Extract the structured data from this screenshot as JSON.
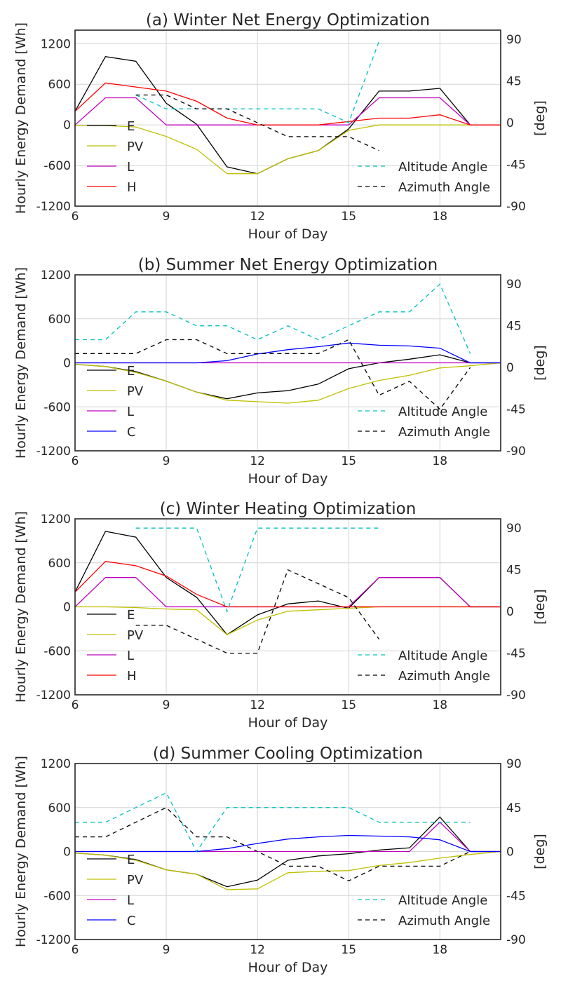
{
  "chart_data": [
    {
      "type": "line",
      "title": "(a) Winter Net Energy Optimization",
      "xlabel": "Hour of Day",
      "ylabel": "Hourly Energy Demand [Wh]",
      "y2label": "[deg]",
      "xlim": [
        6,
        20
      ],
      "ylim": [
        -1200,
        1400
      ],
      "y2lim": [
        -90,
        100
      ],
      "xticks": [
        6,
        9,
        12,
        15,
        18
      ],
      "yticks": [
        -1200,
        -600,
        0,
        600,
        1200
      ],
      "y2ticks": [
        -90,
        -45,
        0,
        45,
        90
      ],
      "grid": true,
      "legend_left": "left",
      "legend_right": "lower-right",
      "series": [
        {
          "name": "E",
          "color": "#000000",
          "axis": "left",
          "dash": false,
          "x": [
            6,
            7,
            8,
            9,
            10,
            11,
            12,
            13,
            14,
            15,
            16,
            17,
            18,
            19,
            20
          ],
          "values": [
            200,
            1010,
            940,
            320,
            10,
            -620,
            -720,
            -500,
            -380,
            -60,
            500,
            500,
            540,
            0,
            0
          ]
        },
        {
          "name": "PV",
          "color": "#bfbf00",
          "axis": "left",
          "dash": false,
          "x": [
            6,
            7,
            8,
            9,
            10,
            11,
            12,
            13,
            14,
            15,
            16,
            17,
            18,
            19,
            20
          ],
          "values": [
            -10,
            -10,
            -30,
            -170,
            -360,
            -720,
            -720,
            -500,
            -380,
            -80,
            0,
            0,
            0,
            0,
            0
          ]
        },
        {
          "name": "L",
          "color": "#bf00bf",
          "axis": "left",
          "dash": false,
          "x": [
            6,
            7,
            8,
            9,
            10,
            11,
            12,
            13,
            14,
            15,
            16,
            17,
            18,
            19,
            20
          ],
          "values": [
            0,
            400,
            400,
            0,
            0,
            0,
            0,
            0,
            0,
            0,
            400,
            400,
            400,
            0,
            0
          ]
        },
        {
          "name": "H",
          "color": "#ff0000",
          "axis": "left",
          "dash": false,
          "x": [
            6,
            7,
            8,
            9,
            10,
            11,
            12,
            13,
            14,
            15,
            16,
            17,
            18,
            19,
            20
          ],
          "values": [
            200,
            620,
            560,
            500,
            350,
            100,
            0,
            0,
            0,
            50,
            100,
            100,
            150,
            0,
            0
          ]
        },
        {
          "name": "Altitude Angle",
          "color": "#00bfbf",
          "axis": "right",
          "dash": true,
          "x": [
            8,
            9,
            10,
            11,
            12,
            13,
            14,
            15,
            16
          ],
          "values": [
            30,
            15,
            15,
            15,
            15,
            15,
            15,
            0,
            88
          ]
        },
        {
          "name": "Azimuth Angle",
          "color": "#000000",
          "axis": "right",
          "dash": true,
          "x": [
            8,
            9,
            10,
            11,
            12,
            13,
            14,
            15,
            16
          ],
          "values": [
            30,
            30,
            15,
            15,
            0,
            -15,
            -15,
            -15,
            -30
          ]
        }
      ]
    },
    {
      "type": "line",
      "title": "(b) Summer Net Energy Optimization",
      "xlabel": "Hour of Day",
      "ylabel": "Hourly Energy Demand [Wh]",
      "y2label": "[deg]",
      "xlim": [
        6,
        20
      ],
      "ylim": [
        -1200,
        1200
      ],
      "y2lim": [
        -90,
        100
      ],
      "xticks": [
        6,
        9,
        12,
        15,
        18
      ],
      "yticks": [
        -1200,
        -600,
        0,
        600,
        1200
      ],
      "y2ticks": [
        -90,
        -45,
        0,
        45,
        90
      ],
      "grid": true,
      "legend_left": "left",
      "legend_right": "lower-right",
      "series": [
        {
          "name": "E",
          "color": "#000000",
          "axis": "left",
          "dash": false,
          "x": [
            6,
            7,
            8,
            9,
            10,
            11,
            12,
            13,
            14,
            15,
            16,
            17,
            18,
            19,
            20
          ],
          "values": [
            -20,
            -50,
            -120,
            -250,
            -400,
            -490,
            -410,
            -380,
            -290,
            -80,
            0,
            50,
            110,
            0,
            0
          ]
        },
        {
          "name": "PV",
          "color": "#bfbf00",
          "axis": "left",
          "dash": false,
          "x": [
            6,
            7,
            8,
            9,
            10,
            11,
            12,
            13,
            14,
            15,
            16,
            17,
            18,
            19,
            20
          ],
          "values": [
            -20,
            -50,
            -130,
            -250,
            -400,
            -510,
            -530,
            -550,
            -510,
            -350,
            -240,
            -170,
            -70,
            -40,
            0
          ]
        },
        {
          "name": "L",
          "color": "#bf00bf",
          "axis": "left",
          "dash": false,
          "x": [
            6,
            7,
            8,
            9,
            10,
            11,
            12,
            13,
            14,
            15,
            16,
            17,
            18,
            19,
            20
          ],
          "values": [
            0,
            0,
            0,
            0,
            0,
            0,
            0,
            0,
            0,
            0,
            0,
            0,
            0,
            0,
            0
          ]
        },
        {
          "name": "C",
          "color": "#0000ff",
          "axis": "left",
          "dash": false,
          "x": [
            6,
            7,
            8,
            9,
            10,
            11,
            12,
            13,
            14,
            15,
            16,
            17,
            18,
            19,
            20
          ],
          "values": [
            0,
            0,
            0,
            0,
            0,
            30,
            120,
            180,
            220,
            270,
            240,
            230,
            200,
            0,
            0
          ]
        },
        {
          "name": "Altitude Angle",
          "color": "#00bfbf",
          "axis": "right",
          "dash": true,
          "x": [
            6,
            7,
            8,
            9,
            10,
            11,
            12,
            13,
            14,
            15,
            16,
            17,
            18,
            19
          ],
          "values": [
            30,
            30,
            60,
            60,
            45,
            45,
            30,
            45,
            30,
            45,
            60,
            60,
            90,
            15
          ]
        },
        {
          "name": "Azimuth Angle",
          "color": "#000000",
          "axis": "right",
          "dash": true,
          "x": [
            6,
            7,
            8,
            9,
            10,
            11,
            12,
            13,
            14,
            15,
            16,
            17,
            18,
            19
          ],
          "values": [
            15,
            15,
            15,
            30,
            30,
            15,
            15,
            15,
            15,
            30,
            -30,
            -15,
            -45,
            0
          ]
        }
      ]
    },
    {
      "type": "line",
      "title": "(c) Winter Heating Optimization",
      "xlabel": "Hour of Day",
      "ylabel": "Hourly Energy Demand [Wh]",
      "y2label": "[deg]",
      "xlim": [
        6,
        20
      ],
      "ylim": [
        -1200,
        1200
      ],
      "y2lim": [
        -90,
        100
      ],
      "xticks": [
        6,
        9,
        12,
        15,
        18
      ],
      "yticks": [
        -1200,
        -600,
        0,
        600,
        1200
      ],
      "y2ticks": [
        -90,
        -45,
        0,
        45,
        90
      ],
      "grid": true,
      "legend_left": "left",
      "legend_right": "lower-right",
      "series": [
        {
          "name": "E",
          "color": "#000000",
          "axis": "left",
          "dash": false,
          "x": [
            6,
            7,
            8,
            9,
            10,
            11,
            12,
            13,
            14,
            15,
            16,
            17,
            18,
            19,
            20
          ],
          "values": [
            200,
            1030,
            950,
            400,
            130,
            -380,
            -110,
            40,
            80,
            -20,
            400,
            400,
            400,
            0,
            0
          ]
        },
        {
          "name": "PV",
          "color": "#bfbf00",
          "axis": "left",
          "dash": false,
          "x": [
            6,
            7,
            8,
            9,
            10,
            11,
            12,
            13,
            14,
            15,
            16,
            17,
            18,
            19,
            20
          ],
          "values": [
            0,
            0,
            -10,
            -30,
            -40,
            -380,
            -180,
            -60,
            -40,
            -20,
            0,
            0,
            0,
            0,
            0
          ]
        },
        {
          "name": "L",
          "color": "#bf00bf",
          "axis": "left",
          "dash": false,
          "x": [
            6,
            7,
            8,
            9,
            10,
            11,
            12,
            13,
            14,
            15,
            16,
            17,
            18,
            19,
            20
          ],
          "values": [
            0,
            400,
            400,
            0,
            0,
            0,
            0,
            0,
            0,
            0,
            400,
            400,
            400,
            0,
            0
          ]
        },
        {
          "name": "H",
          "color": "#ff0000",
          "axis": "left",
          "dash": false,
          "x": [
            6,
            7,
            8,
            9,
            10,
            11,
            12,
            13,
            14,
            15,
            16,
            17,
            18,
            19,
            20
          ],
          "values": [
            200,
            620,
            560,
            420,
            170,
            0,
            0,
            0,
            0,
            0,
            0,
            0,
            0,
            0,
            0
          ]
        },
        {
          "name": "Altitude Angle",
          "color": "#00bfbf",
          "axis": "right",
          "dash": true,
          "x": [
            8,
            9,
            10,
            11,
            12,
            13,
            14,
            15,
            16
          ],
          "values": [
            90,
            90,
            90,
            0,
            90,
            90,
            90,
            90,
            90
          ]
        },
        {
          "name": "Azimuth Angle",
          "color": "#000000",
          "axis": "right",
          "dash": true,
          "x": [
            8,
            9,
            10,
            11,
            12,
            13,
            14,
            15,
            16
          ],
          "values": [
            -15,
            -15,
            -30,
            -45,
            -45,
            45,
            30,
            15,
            -30
          ]
        }
      ]
    },
    {
      "type": "line",
      "title": "(d) Summer Cooling Optimization",
      "xlabel": "Hour of Day",
      "ylabel": "Hourly Energy Demand [Wh]",
      "y2label": "[deg]",
      "xlim": [
        6,
        20
      ],
      "ylim": [
        -1200,
        1200
      ],
      "y2lim": [
        -90,
        90
      ],
      "xticks": [
        6,
        9,
        12,
        15,
        18
      ],
      "yticks": [
        -1200,
        -600,
        0,
        600,
        1200
      ],
      "y2ticks": [
        -90,
        -45,
        0,
        45,
        90
      ],
      "grid": true,
      "legend_left": "left",
      "legend_right": "lower-right",
      "series": [
        {
          "name": "E",
          "color": "#000000",
          "axis": "left",
          "dash": false,
          "x": [
            6,
            7,
            8,
            9,
            10,
            11,
            12,
            13,
            14,
            15,
            16,
            17,
            18,
            19,
            20
          ],
          "values": [
            -20,
            -50,
            -110,
            -250,
            -310,
            -480,
            -390,
            -120,
            -60,
            -30,
            20,
            50,
            470,
            0,
            0
          ]
        },
        {
          "name": "PV",
          "color": "#bfbf00",
          "axis": "left",
          "dash": false,
          "x": [
            6,
            7,
            8,
            9,
            10,
            11,
            12,
            13,
            14,
            15,
            16,
            17,
            18,
            19,
            20
          ],
          "values": [
            -20,
            -50,
            -120,
            -250,
            -310,
            -520,
            -510,
            -290,
            -270,
            -260,
            -190,
            -150,
            -90,
            -40,
            0
          ]
        },
        {
          "name": "L",
          "color": "#bf00bf",
          "axis": "left",
          "dash": false,
          "x": [
            6,
            7,
            8,
            9,
            10,
            11,
            12,
            13,
            14,
            15,
            16,
            17,
            18,
            19,
            20
          ],
          "values": [
            0,
            0,
            0,
            0,
            0,
            0,
            0,
            0,
            0,
            0,
            0,
            0,
            400,
            0,
            0
          ]
        },
        {
          "name": "C",
          "color": "#0000ff",
          "axis": "left",
          "dash": false,
          "x": [
            6,
            7,
            8,
            9,
            10,
            11,
            12,
            13,
            14,
            15,
            16,
            17,
            18,
            19,
            20
          ],
          "values": [
            0,
            0,
            0,
            0,
            0,
            40,
            110,
            170,
            200,
            220,
            210,
            200,
            160,
            0,
            0
          ]
        },
        {
          "name": "Altitude Angle",
          "color": "#00bfbf",
          "axis": "right",
          "dash": true,
          "x": [
            6,
            7,
            8,
            9,
            10,
            11,
            12,
            13,
            14,
            15,
            16,
            17,
            18,
            19
          ],
          "values": [
            30,
            30,
            45,
            60,
            0,
            45,
            45,
            45,
            45,
            45,
            30,
            30,
            30,
            30
          ]
        },
        {
          "name": "Azimuth Angle",
          "color": "#000000",
          "axis": "right",
          "dash": true,
          "x": [
            6,
            7,
            8,
            9,
            10,
            11,
            12,
            13,
            14,
            15,
            16,
            17,
            18,
            19
          ],
          "values": [
            15,
            15,
            30,
            45,
            15,
            15,
            0,
            -15,
            -15,
            -30,
            -15,
            -15,
            -15,
            0
          ]
        }
      ]
    }
  ]
}
